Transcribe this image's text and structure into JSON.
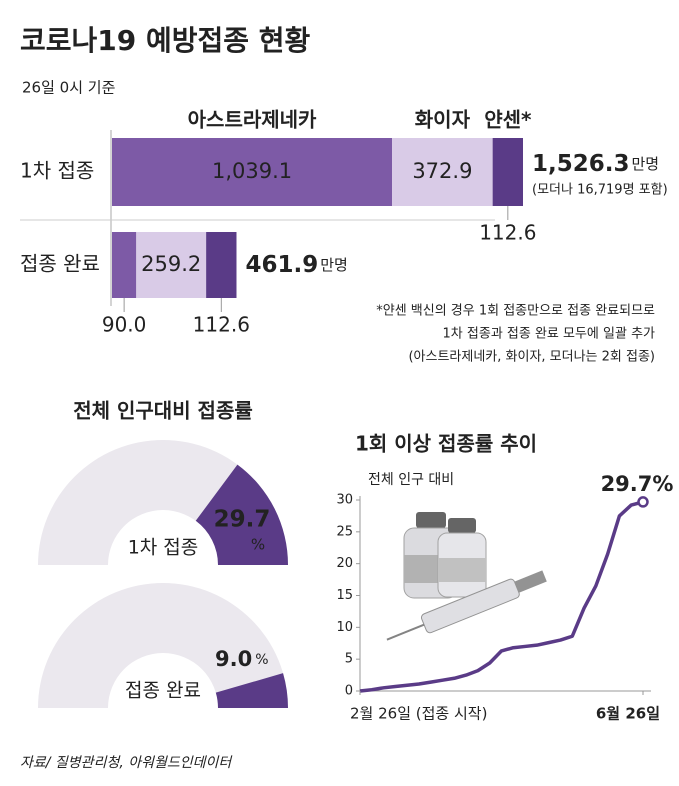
{
  "title": "코로나19 예방접종 현황",
  "subtitle": "26일 0시 기준",
  "source": "자료/ 질병관리청, 아워월드인데이터",
  "chart_data": [
    {
      "type": "stacked-bar-h",
      "categories": [
        "1차 접종",
        "접종 완료"
      ],
      "series": [
        {
          "name": "아스트라제네카",
          "color": "#7d5aa6",
          "values": [
            1039.1,
            90.0
          ],
          "value_labels": [
            "1,039.1",
            "90.0"
          ]
        },
        {
          "name": "화이자",
          "color": "#d9cbe7",
          "values": [
            372.9,
            259.2
          ],
          "value_labels": [
            "372.9",
            "259.2"
          ]
        },
        {
          "name": "얀센*",
          "color": "#5a3b87",
          "values": [
            112.6,
            112.6
          ],
          "value_labels": [
            "112.6",
            "112.6"
          ]
        }
      ],
      "totals": [
        1526.3,
        461.9
      ],
      "total_labels": [
        "1,526.3",
        "461.9"
      ],
      "total_unit": "만명",
      "total_note": "(모더나 16,719명 포함)",
      "footnote": [
        "*얀센 백신의 경우 1회 접종만으로 접종 완료되므로",
        "1차 접종과 접종 완료 모두에 일괄 추가",
        "(아스트라제네카, 화이자, 모더나는 2회 접종)"
      ]
    },
    {
      "type": "gauge",
      "title": "전체 인구대비 접종률",
      "categories": [
        "1차 접종",
        "접종 완료"
      ],
      "values": [
        29.7,
        9.0
      ],
      "value_labels": [
        "29.7",
        "9.0"
      ],
      "unit": "%",
      "ylim": [
        0,
        100
      ],
      "color": "#5a3b87",
      "track_color": "#ebe8ee"
    },
    {
      "type": "line",
      "title": "1회 이상 접종률 추이",
      "y_label": "전체 인구 대비",
      "categories": [
        "2월 26일 (접종 시작)",
        null,
        null,
        null,
        null,
        null,
        null,
        null,
        null,
        null,
        null,
        null,
        null,
        null,
        null,
        null,
        null,
        null,
        null,
        null,
        null,
        null,
        null,
        null,
        "6월 26일"
      ],
      "values": [
        0,
        0.2,
        0.5,
        0.7,
        0.9,
        1.1,
        1.4,
        1.7,
        2.0,
        2.5,
        3.2,
        4.4,
        6.3,
        6.8,
        7.0,
        7.2,
        7.6,
        8.0,
        8.6,
        13.0,
        16.5,
        21.5,
        27.5,
        29.2,
        29.7
      ],
      "annotation": "29.7%",
      "color": "#5a3b87",
      "ylim": [
        0,
        30
      ],
      "yticks": [
        0,
        5,
        10,
        15,
        20,
        25,
        30
      ]
    }
  ]
}
